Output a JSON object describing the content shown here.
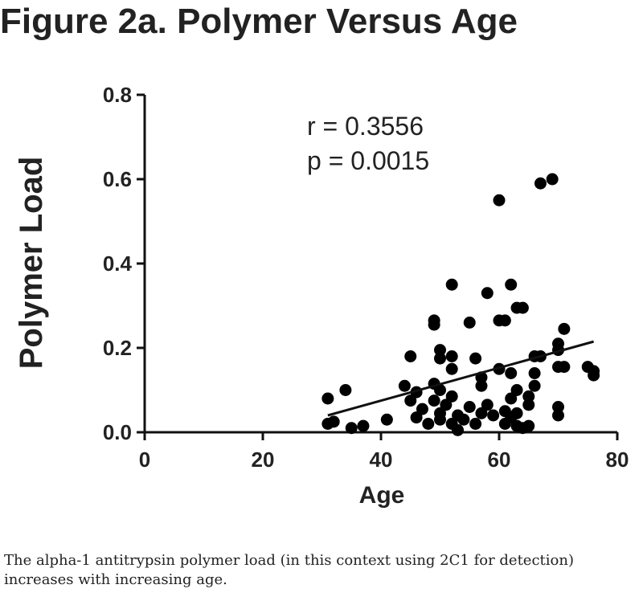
{
  "page": {
    "title": "Figure 2a. Polymer Versus Age",
    "caption": "The alpha-1 antitrypsin polymer load (in this context using 2C1 for detection) increases with increasing age."
  },
  "chart_data": {
    "type": "scatter",
    "title": "",
    "xlabel": "Age",
    "ylabel": "Polymer Load",
    "xlim": [
      0,
      80
    ],
    "ylim": [
      0,
      0.8
    ],
    "xticks": [
      "0",
      "20",
      "40",
      "60",
      "80"
    ],
    "yticks": [
      "0.0",
      "0.2",
      "0.4",
      "0.6",
      "0.8"
    ],
    "grid": false,
    "annotations": [
      "r = 0.3556",
      "p = 0.0015"
    ],
    "marker_color": "#000000",
    "points": [
      [
        31,
        0.08
      ],
      [
        31,
        0.02
      ],
      [
        32,
        0.025
      ],
      [
        34,
        0.1
      ],
      [
        35,
        0.01
      ],
      [
        37,
        0.015
      ],
      [
        41,
        0.03
      ],
      [
        44,
        0.11
      ],
      [
        45,
        0.18
      ],
      [
        45,
        0.075
      ],
      [
        46,
        0.095
      ],
      [
        46,
        0.035
      ],
      [
        47,
        0.055
      ],
      [
        48,
        0.02
      ],
      [
        49,
        0.255
      ],
      [
        49,
        0.265
      ],
      [
        49,
        0.115
      ],
      [
        49,
        0.075
      ],
      [
        50,
        0.195
      ],
      [
        50,
        0.175
      ],
      [
        50,
        0.1
      ],
      [
        50,
        0.045
      ],
      [
        50,
        0.03
      ],
      [
        51,
        0.065
      ],
      [
        52,
        0.35
      ],
      [
        52,
        0.18
      ],
      [
        52,
        0.15
      ],
      [
        52,
        0.085
      ],
      [
        52,
        0.02
      ],
      [
        53,
        0.005
      ],
      [
        53,
        0.04
      ],
      [
        54,
        0.03
      ],
      [
        55,
        0.26
      ],
      [
        55,
        0.06
      ],
      [
        56,
        0.175
      ],
      [
        56,
        0.02
      ],
      [
        57,
        0.13
      ],
      [
        57,
        0.045
      ],
      [
        57,
        0.11
      ],
      [
        58,
        0.065
      ],
      [
        58,
        0.33
      ],
      [
        59,
        0.04
      ],
      [
        60,
        0.55
      ],
      [
        60,
        0.265
      ],
      [
        60,
        0.15
      ],
      [
        61,
        0.265
      ],
      [
        61,
        0.05
      ],
      [
        61,
        0.02
      ],
      [
        62,
        0.35
      ],
      [
        62,
        0.14
      ],
      [
        62,
        0.08
      ],
      [
        62,
        0.035
      ],
      [
        63,
        0.295
      ],
      [
        63,
        0.1
      ],
      [
        63,
        0.045
      ],
      [
        63,
        0.015
      ],
      [
        64,
        0.295
      ],
      [
        64,
        0.01
      ],
      [
        65,
        0.085
      ],
      [
        65,
        0.065
      ],
      [
        65,
        0.015
      ],
      [
        66,
        0.18
      ],
      [
        66,
        0.14
      ],
      [
        66,
        0.11
      ],
      [
        67,
        0.59
      ],
      [
        67,
        0.18
      ],
      [
        69,
        0.6
      ],
      [
        70,
        0.21
      ],
      [
        70,
        0.195
      ],
      [
        70,
        0.155
      ],
      [
        70,
        0.06
      ],
      [
        70,
        0.04
      ],
      [
        71,
        0.245
      ],
      [
        71,
        0.155
      ],
      [
        75,
        0.155
      ],
      [
        76,
        0.145
      ],
      [
        76,
        0.135
      ]
    ],
    "trendline": {
      "x": [
        31,
        76
      ],
      "y": [
        0.04,
        0.215
      ]
    }
  }
}
